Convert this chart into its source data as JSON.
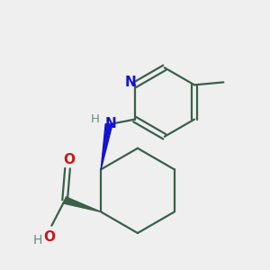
{
  "bg_color": "#efefef",
  "bond_color": "#3a5f4a",
  "n_color": "#1414cc",
  "o_color": "#cc1414",
  "h_color": "#6a8a7a",
  "lw": 1.6,
  "figsize": [
    3.0,
    3.0
  ],
  "dpi": 100,
  "xlim": [
    -1.8,
    2.8
  ],
  "ylim": [
    -2.8,
    2.2
  ]
}
